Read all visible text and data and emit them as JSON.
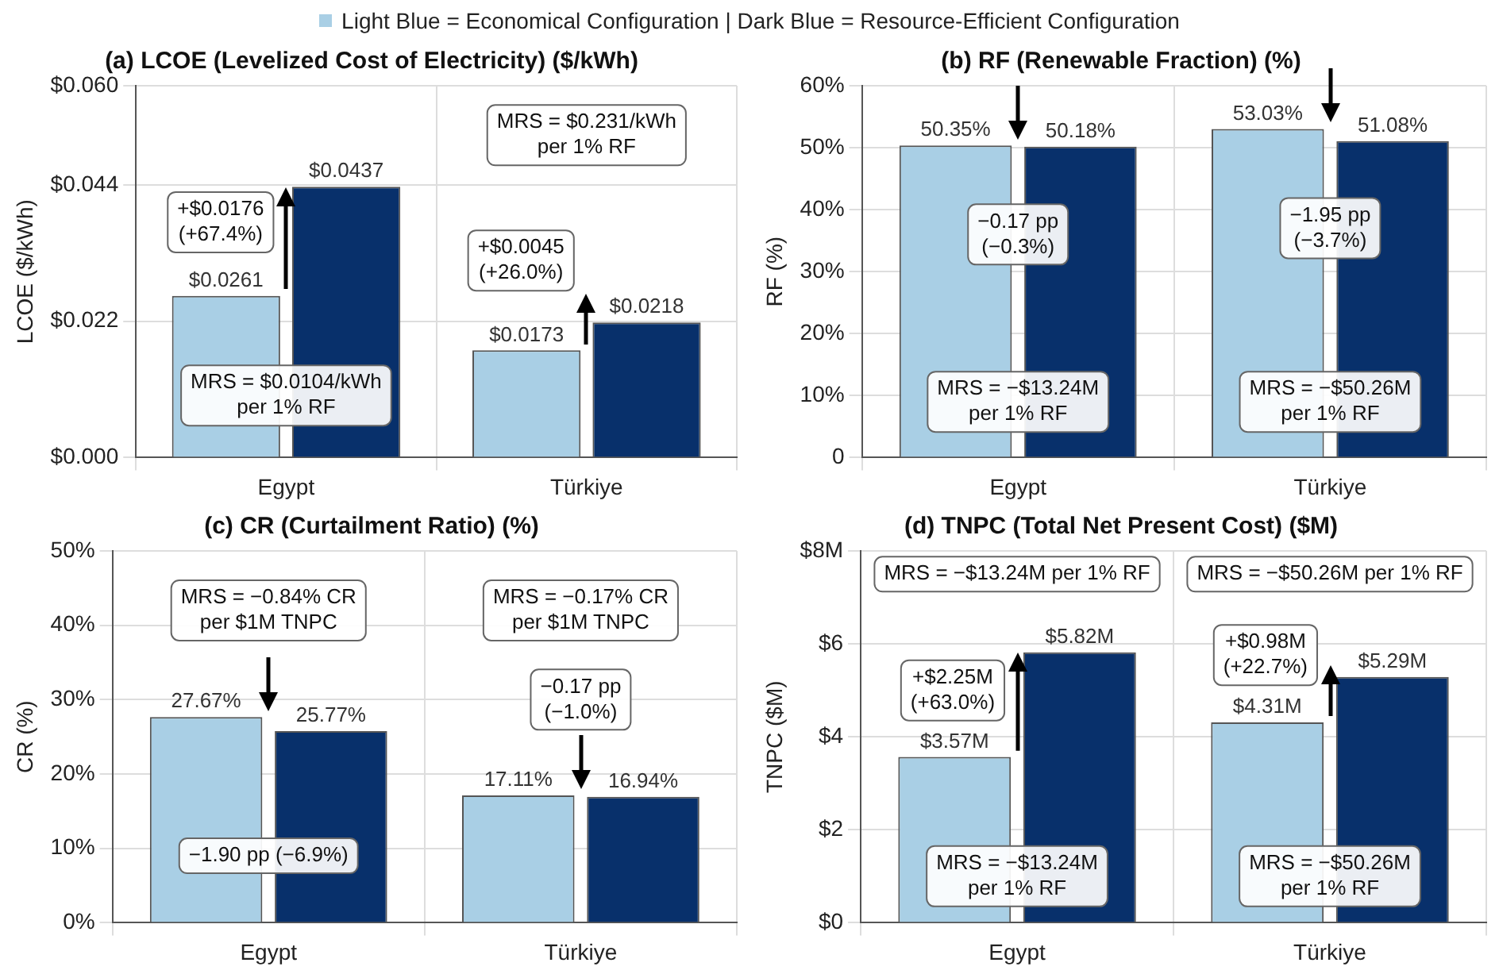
{
  "chart_data": [
    {
      "type": "bar",
      "title": "(a) LCOE (Levelized Cost of Electricity) ($/kWh)",
      "ylabel": "LCOE ($/kWh)",
      "categories": [
        "Egypt",
        "Türkiye"
      ],
      "series": [
        {
          "color": "#a9cfe5",
          "values": [
            0.0261,
            0.0173
          ],
          "value_labels": [
            "$0.0261",
            "$0.0173"
          ]
        },
        {
          "color": "#08306b",
          "values": [
            0.0437,
            0.0218
          ],
          "value_labels": [
            "$0.0437",
            "$0.0218"
          ]
        }
      ],
      "ylim": [
        0,
        0.06
      ],
      "yticks": [
        {
          "value": 0,
          "label": "$0.000"
        },
        {
          "value": 0.022,
          "label": "$0.022"
        },
        {
          "value": 0.044,
          "label": "$0.044"
        },
        {
          "value": 0.06,
          "label": "$0.060"
        }
      ],
      "grid": true,
      "annotations": [
        "Light Blue = Economical Configuration | Dark Blue = Resource-Efficient Configuration",
        "+$0.0176\n(+67.4%)",
        "MRS = $0.0104/kWh\nper 1% RF",
        "+$0.0045\n(+26.0%)",
        "MRS = $0.231/kWh\nper 1% RF"
      ]
    },
    {
      "type": "bar",
      "title": "(b) RF (Renewable Fraction) (%)",
      "ylabel": "RF (%)",
      "categories": [
        "Egypt",
        "Türkiye"
      ],
      "series": [
        {
          "color": "#a9cfe5",
          "values": [
            50.35,
            53.03
          ],
          "value_labels": [
            "50.35%",
            "53.03%"
          ]
        },
        {
          "color": "#08306b",
          "values": [
            50.18,
            51.08
          ],
          "value_labels": [
            "50.18%",
            "51.08%"
          ]
        }
      ],
      "ylim": [
        0,
        60
      ],
      "yticks": [
        0,
        {
          "value": 10,
          "label": "10%"
        },
        {
          "value": 20,
          "label": "20%"
        },
        {
          "value": 30,
          "label": "30%"
        },
        {
          "value": 40,
          "label": "40%"
        },
        {
          "value": 50,
          "label": "50%"
        },
        {
          "value": 60,
          "label": "60%"
        }
      ],
      "grid": true,
      "annotations": [
        "−0.17 pp\n(−0.3%)",
        "MRS = −$13.24M\nper 1% RF",
        "−1.95 pp\n(−3.7%)",
        "MRS = −$50.26M\nper 1% RF"
      ]
    },
    {
      "type": "bar",
      "title": "(c) CR (Curtailment Ratio) (%)",
      "ylabel": "CR (%)",
      "categories": [
        "Egypt",
        "Türkiye"
      ],
      "series": [
        {
          "color": "#a9cfe5",
          "values": [
            27.67,
            17.11
          ],
          "value_labels": [
            "27.67%",
            "17.11%"
          ]
        },
        {
          "color": "#08306b",
          "values": [
            25.77,
            16.94
          ],
          "value_labels": [
            "25.77%",
            "16.94%"
          ]
        }
      ],
      "ylim": [
        0,
        50
      ],
      "yticks": [
        {
          "value": 0,
          "label": "0%"
        },
        {
          "value": 10,
          "label": "10%"
        },
        {
          "value": 20,
          "label": "20%"
        },
        {
          "value": 30,
          "label": "30%"
        },
        {
          "value": 40,
          "label": "40%"
        },
        {
          "value": 50,
          "label": "50%"
        }
      ],
      "grid": true,
      "annotations": [
        "MRS = −0.84% CR\nper $1M TNPC",
        "−1.90 pp (−6.9%)",
        "MRS = −0.17% CR\nper $1M TNPC",
        "−0.17 pp\n(−1.0%)"
      ]
    },
    {
      "type": "bar",
      "title": "(d) TNPC (Total Net Present Cost) ($M)",
      "ylabel": "TNPC ($M)",
      "categories": [
        "Egypt",
        "Türkiye"
      ],
      "series": [
        {
          "color": "#a9cfe5",
          "values": [
            3.57,
            4.31
          ],
          "value_labels": [
            "$3.57M",
            "$4.31M"
          ]
        },
        {
          "color": "#08306b",
          "values": [
            5.82,
            5.29
          ],
          "value_labels": [
            "$5.82M",
            "$5.29M"
          ]
        }
      ],
      "ylim": [
        0,
        8
      ],
      "yticks": [
        {
          "value": 0,
          "label": "$0"
        },
        {
          "value": 2,
          "label": "$2"
        },
        {
          "value": 4,
          "label": "$4"
        },
        {
          "value": 6,
          "label": "$6"
        },
        {
          "value": 8,
          "label": "$8M"
        }
      ],
      "grid": true,
      "annotations": [
        "MRS = −$13.24M per 1% RF",
        "+$2.25M\n(+63.0%)",
        "MRS = −$13.24M\nper 1% RF",
        "MRS = −$50.26M per 1% RF",
        "+$0.98M\n(+22.7%)",
        "MRS = −$50.26M\nper 1% RF"
      ]
    }
  ]
}
